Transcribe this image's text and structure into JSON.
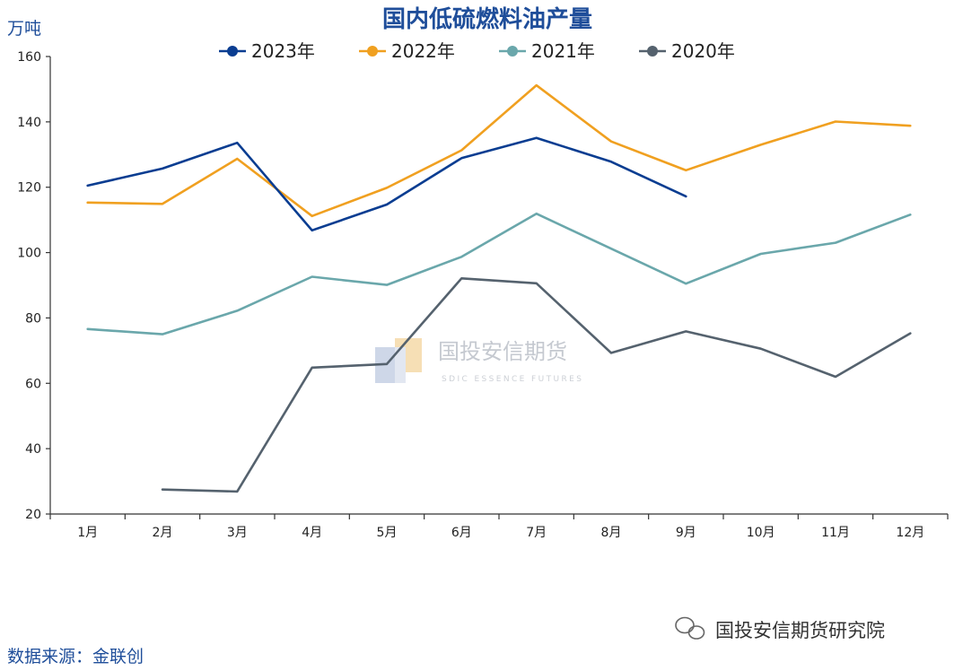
{
  "page": {
    "title": "国内低硫燃料油产量",
    "unit": "万吨",
    "source": "数据来源：金联创",
    "watermark": {
      "cn": "国投安信期货",
      "en": "SDIC ESSENCE FUTURES"
    },
    "wechat_label": "国投安信期货研究院"
  },
  "chart_data": {
    "type": "line",
    "title": "国内低硫燃料油产量",
    "ylabel": "万吨",
    "xlabel": "",
    "ylim": [
      20,
      160
    ],
    "yticks": [
      20,
      40,
      60,
      80,
      100,
      120,
      140,
      160
    ],
    "categories": [
      "1月",
      "2月",
      "3月",
      "4月",
      "5月",
      "6月",
      "7月",
      "8月",
      "9月",
      "10月",
      "11月",
      "12月"
    ],
    "grid": false,
    "legend_position": "top-center",
    "series": [
      {
        "name": "2023年",
        "color": "#0a3d91",
        "values": [
          120.5,
          125.7,
          133.6,
          106.8,
          114.7,
          128.9,
          135.1,
          127.8,
          117.2,
          null,
          null,
          null
        ]
      },
      {
        "name": "2022年",
        "color": "#f0a020",
        "values": [
          115.3,
          114.9,
          128.7,
          111.2,
          119.8,
          131.3,
          151.2,
          134.0,
          125.2,
          133.0,
          140.1,
          138.8
        ]
      },
      {
        "name": "2021年",
        "color": "#6aa7ab",
        "values": [
          76.6,
          75.0,
          82.2,
          92.6,
          90.1,
          98.7,
          111.9,
          101.2,
          90.5,
          99.6,
          103.0,
          111.6
        ]
      },
      {
        "name": "2020年",
        "color": "#55626e",
        "values": [
          null,
          27.5,
          26.9,
          64.8,
          65.9,
          92.1,
          90.6,
          69.3,
          75.9,
          70.6,
          62.0,
          75.3
        ]
      }
    ]
  }
}
